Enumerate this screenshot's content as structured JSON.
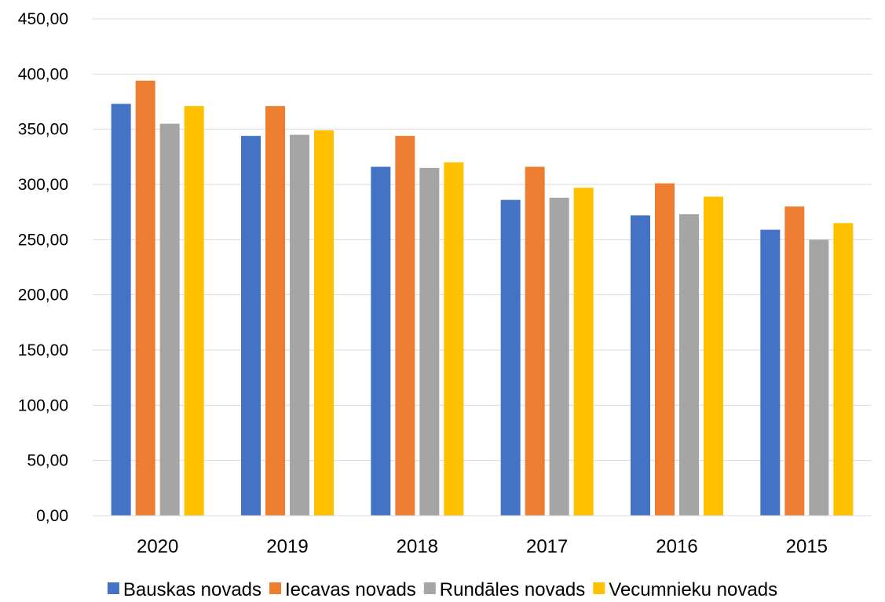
{
  "chart_data": {
    "type": "bar",
    "categories": [
      "2020",
      "2019",
      "2018",
      "2017",
      "2016",
      "2015"
    ],
    "series": [
      {
        "name": "Bauskas novads",
        "color": "#4472C4",
        "values": [
          373,
          344,
          316,
          286,
          272,
          259
        ]
      },
      {
        "name": "Iecavas novads",
        "color": "#ED7D31",
        "values": [
          394,
          371,
          344,
          316,
          301,
          280
        ]
      },
      {
        "name": "Rundāles novads",
        "color": "#A5A5A5",
        "values": [
          355,
          345,
          315,
          288,
          273,
          250
        ]
      },
      {
        "name": "Vecumnieku novads",
        "color": "#FFC000",
        "values": [
          371,
          349,
          320,
          297,
          289,
          265
        ]
      }
    ],
    "ylim": [
      0,
      450
    ],
    "yticks": [
      "0,00",
      "50,00",
      "100,00",
      "150,00",
      "200,00",
      "250,00",
      "300,00",
      "350,00",
      "400,00",
      "450,00"
    ],
    "grid": true,
    "legend_position": "bottom",
    "title": "",
    "xlabel": "",
    "ylabel": ""
  }
}
